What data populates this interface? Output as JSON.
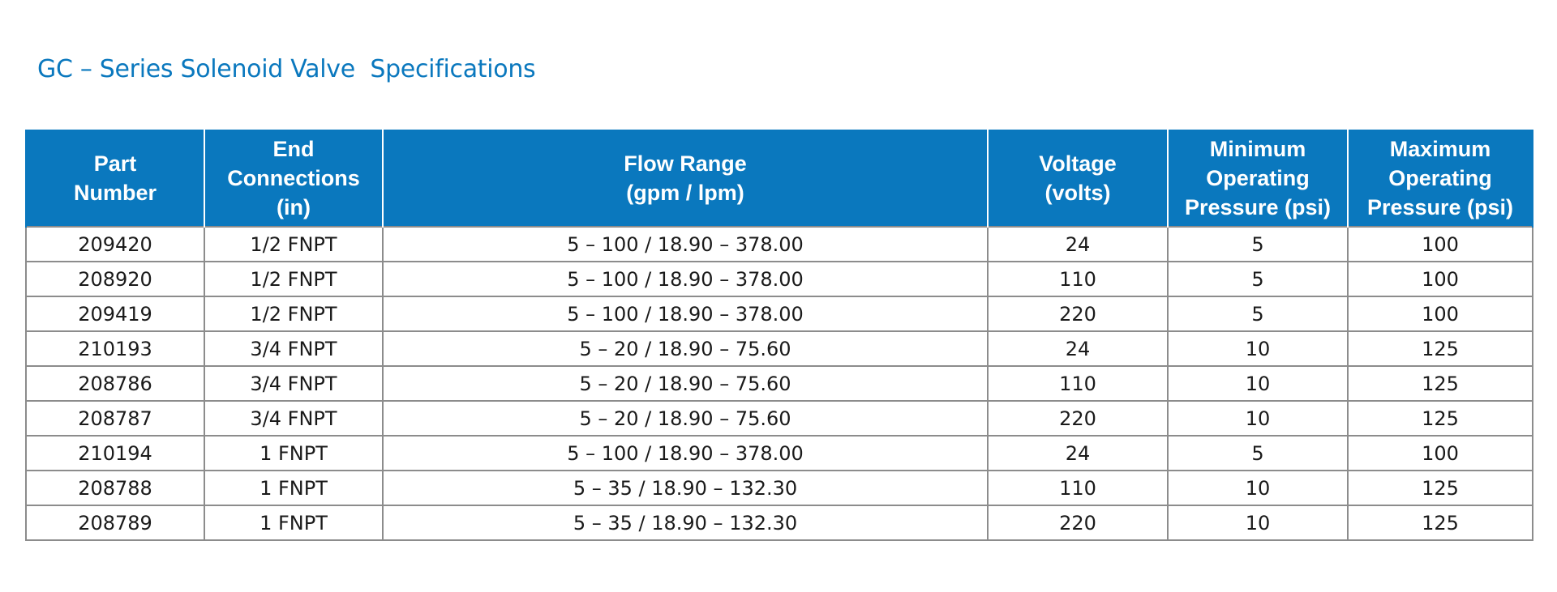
{
  "title": "GC – Series Solenoid Valve  Specifications",
  "accent_color": "#0a78be",
  "table": {
    "headers": [
      "Part\nNumber",
      "End\nConnections\n(in)",
      "Flow Range\n(gpm / lpm)",
      "Voltage\n(volts)",
      "Minimum\nOperating\nPressure (psi)",
      "Maximum\nOperating\nPressure (psi)"
    ],
    "rows": [
      [
        "209420",
        "1/2 FNPT",
        "5 – 100 / 18.90 – 378.00",
        "24",
        "5",
        "100"
      ],
      [
        "208920",
        "1/2 FNPT",
        "5 – 100 / 18.90 – 378.00",
        "110",
        "5",
        "100"
      ],
      [
        "209419",
        "1/2 FNPT",
        "5 – 100 / 18.90 – 378.00",
        "220",
        "5",
        "100"
      ],
      [
        "210193",
        "3/4 FNPT",
        "5 – 20 / 18.90 – 75.60",
        "24",
        "10",
        "125"
      ],
      [
        "208786",
        "3/4 FNPT",
        "5 – 20 / 18.90 – 75.60",
        "110",
        "10",
        "125"
      ],
      [
        "208787",
        "3/4 FNPT",
        "5 – 20 / 18.90 – 75.60",
        "220",
        "10",
        "125"
      ],
      [
        "210194",
        "1 FNPT",
        "5 – 100 / 18.90 – 378.00",
        "24",
        "5",
        "100"
      ],
      [
        "208788",
        "1 FNPT",
        "5 – 35 / 18.90 – 132.30",
        "110",
        "10",
        "125"
      ],
      [
        "208789",
        "1 FNPT",
        "5 – 35 / 18.90 – 132.30",
        "220",
        "10",
        "125"
      ]
    ]
  }
}
